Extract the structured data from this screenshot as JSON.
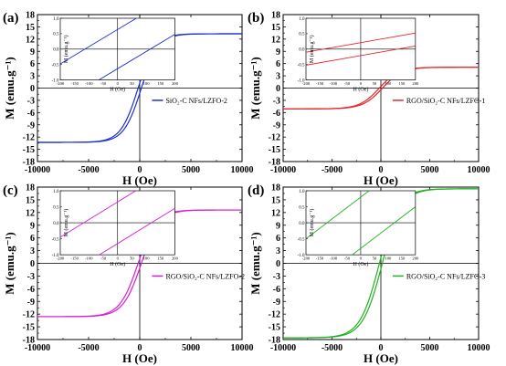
{
  "chart_data": [
    {
      "type": "line",
      "panel_label": "(a)",
      "xlabel": "H (Oe)",
      "ylabel": "M (emu.g⁻¹)",
      "xlim": [
        -10000,
        10000
      ],
      "ylim": [
        -18,
        18
      ],
      "xticks": [
        "-10000",
        "-5000",
        "0",
        "5000",
        "10000"
      ],
      "yticks": [
        "-18",
        "-15",
        "-12",
        "-9",
        "-6",
        "-3",
        "0",
        "3",
        "6",
        "9",
        "12",
        "15",
        "18"
      ],
      "legend": "SiO₂-C NFs/LZFO-2",
      "color": "#1f2fd1",
      "hysteresis": {
        "ms": 13.3,
        "hc": 160,
        "k": 1700
      },
      "inset": {
        "xlim": [
          -200,
          200
        ],
        "ylim": [
          -1.0,
          1.0
        ],
        "xticks": [
          "-200",
          "-150",
          "-100",
          "-50",
          "0",
          "50",
          "100",
          "150",
          "200"
        ],
        "yticks": [
          "1.0",
          "0.5",
          "0.0",
          "-0.5",
          "-1.0"
        ],
        "xlabel": "H (Oe)",
        "ylabel": "M (emu.g⁻¹)",
        "lines": [
          {
            "x": [
              -200,
              200
            ],
            "y": [
              -0.48,
              1.75
            ]
          },
          {
            "x": [
              -200,
              200
            ],
            "y": [
              -1.75,
              0.48
            ]
          }
        ]
      }
    },
    {
      "type": "line",
      "panel_label": "(b)",
      "xlabel": "H (Oe)",
      "ylabel": "M (emu.g⁻¹)",
      "xlim": [
        -10000,
        10000
      ],
      "ylim": [
        -18,
        18
      ],
      "xticks": [
        "-10000",
        "-5000",
        "0",
        "5000",
        "10000"
      ],
      "yticks": [
        "-18",
        "-15",
        "-12",
        "-9",
        "-6",
        "-3",
        "0",
        "3",
        "6",
        "9",
        "12",
        "15",
        "18"
      ],
      "legend": "RGO/SiO₂-C NFs/LZFO-1",
      "color": "#e8252a",
      "hysteresis": {
        "ms": 5.1,
        "hc": 160,
        "k": 2000
      },
      "inset": {
        "xlim": [
          -200,
          200
        ],
        "ylim": [
          -1.0,
          1.0
        ],
        "xticks": [
          "-200",
          "-150",
          "-100",
          "-50",
          "0",
          "50",
          "100",
          "150",
          "200"
        ],
        "yticks": [
          "1.0",
          "0.5",
          "0.0",
          "-0.5",
          "-1.0"
        ],
        "xlabel": "H (Oe)",
        "ylabel": "M (emu.g⁻¹)",
        "lines": [
          {
            "x": [
              -200,
              200
            ],
            "y": [
              -0.1,
              0.52
            ]
          },
          {
            "x": [
              -200,
              200
            ],
            "y": [
              -0.52,
              0.1
            ]
          }
        ]
      }
    },
    {
      "type": "line",
      "panel_label": "(c)",
      "xlabel": "H (Oe)",
      "ylabel": "M (emu.g⁻¹)",
      "xlim": [
        -10000,
        10000
      ],
      "ylim": [
        -18,
        18
      ],
      "xticks": [
        "-10000",
        "-5000",
        "0",
        "5000",
        "10000"
      ],
      "yticks": [
        "-18",
        "-15",
        "-12",
        "-9",
        "-6",
        "-3",
        "0",
        "3",
        "6",
        "9",
        "12",
        "15",
        "18"
      ],
      "legend": "RGO/SiO₂-C NFs/LZFO-2",
      "color": "#d61fd6",
      "hysteresis": {
        "ms": 12.6,
        "hc": 160,
        "k": 1800
      },
      "inset": {
        "xlim": [
          -200,
          200
        ],
        "ylim": [
          -1.0,
          1.0
        ],
        "xticks": [
          "-200",
          "-150",
          "-100",
          "-50",
          "0",
          "50",
          "100",
          "150",
          "200"
        ],
        "yticks": [
          "1.0",
          "0.5",
          "0.0",
          "-0.5",
          "-1.0"
        ],
        "xlabel": "H (Oe)",
        "ylabel": "M (emu.g⁻¹)",
        "lines": [
          {
            "x": [
              -200,
              200
            ],
            "y": [
              -0.45,
              1.75
            ]
          },
          {
            "x": [
              -200,
              200
            ],
            "y": [
              -1.75,
              0.45
            ]
          }
        ]
      }
    },
    {
      "type": "line",
      "panel_label": "(d)",
      "xlabel": "H (Oe)",
      "ylabel": "M (emu.g⁻¹)",
      "xlim": [
        -10000,
        10000
      ],
      "ylim": [
        -18,
        18
      ],
      "xticks": [
        "-10000",
        "-5000",
        "0",
        "5000",
        "10000"
      ],
      "yticks": [
        "-18",
        "-15",
        "-12",
        "-9",
        "-6",
        "-3",
        "0",
        "3",
        "6",
        "9",
        "12",
        "15",
        "18"
      ],
      "legend": "RGO/SiO₂-C NFs/LZFO-3",
      "color": "#1fb31f",
      "hysteresis": {
        "ms": 17.6,
        "hc": 150,
        "k": 2000
      },
      "inset": {
        "xlim": [
          -200,
          200
        ],
        "ylim": [
          -1.0,
          1.0
        ],
        "xticks": [
          "-200",
          "-150",
          "-100",
          "-50",
          "0",
          "50",
          "100",
          "150",
          "200"
        ],
        "yticks": [
          "1.0",
          "0.5",
          "0.0",
          "-0.5",
          "-1.0"
        ],
        "xlabel": "H (Oe)",
        "ylabel": "M (emu.g⁻¹)",
        "lines": [
          {
            "x": [
              -200,
              200
            ],
            "y": [
              -0.5,
              2.1
            ]
          },
          {
            "x": [
              -200,
              200
            ],
            "y": [
              -2.1,
              0.5
            ]
          }
        ]
      }
    }
  ]
}
